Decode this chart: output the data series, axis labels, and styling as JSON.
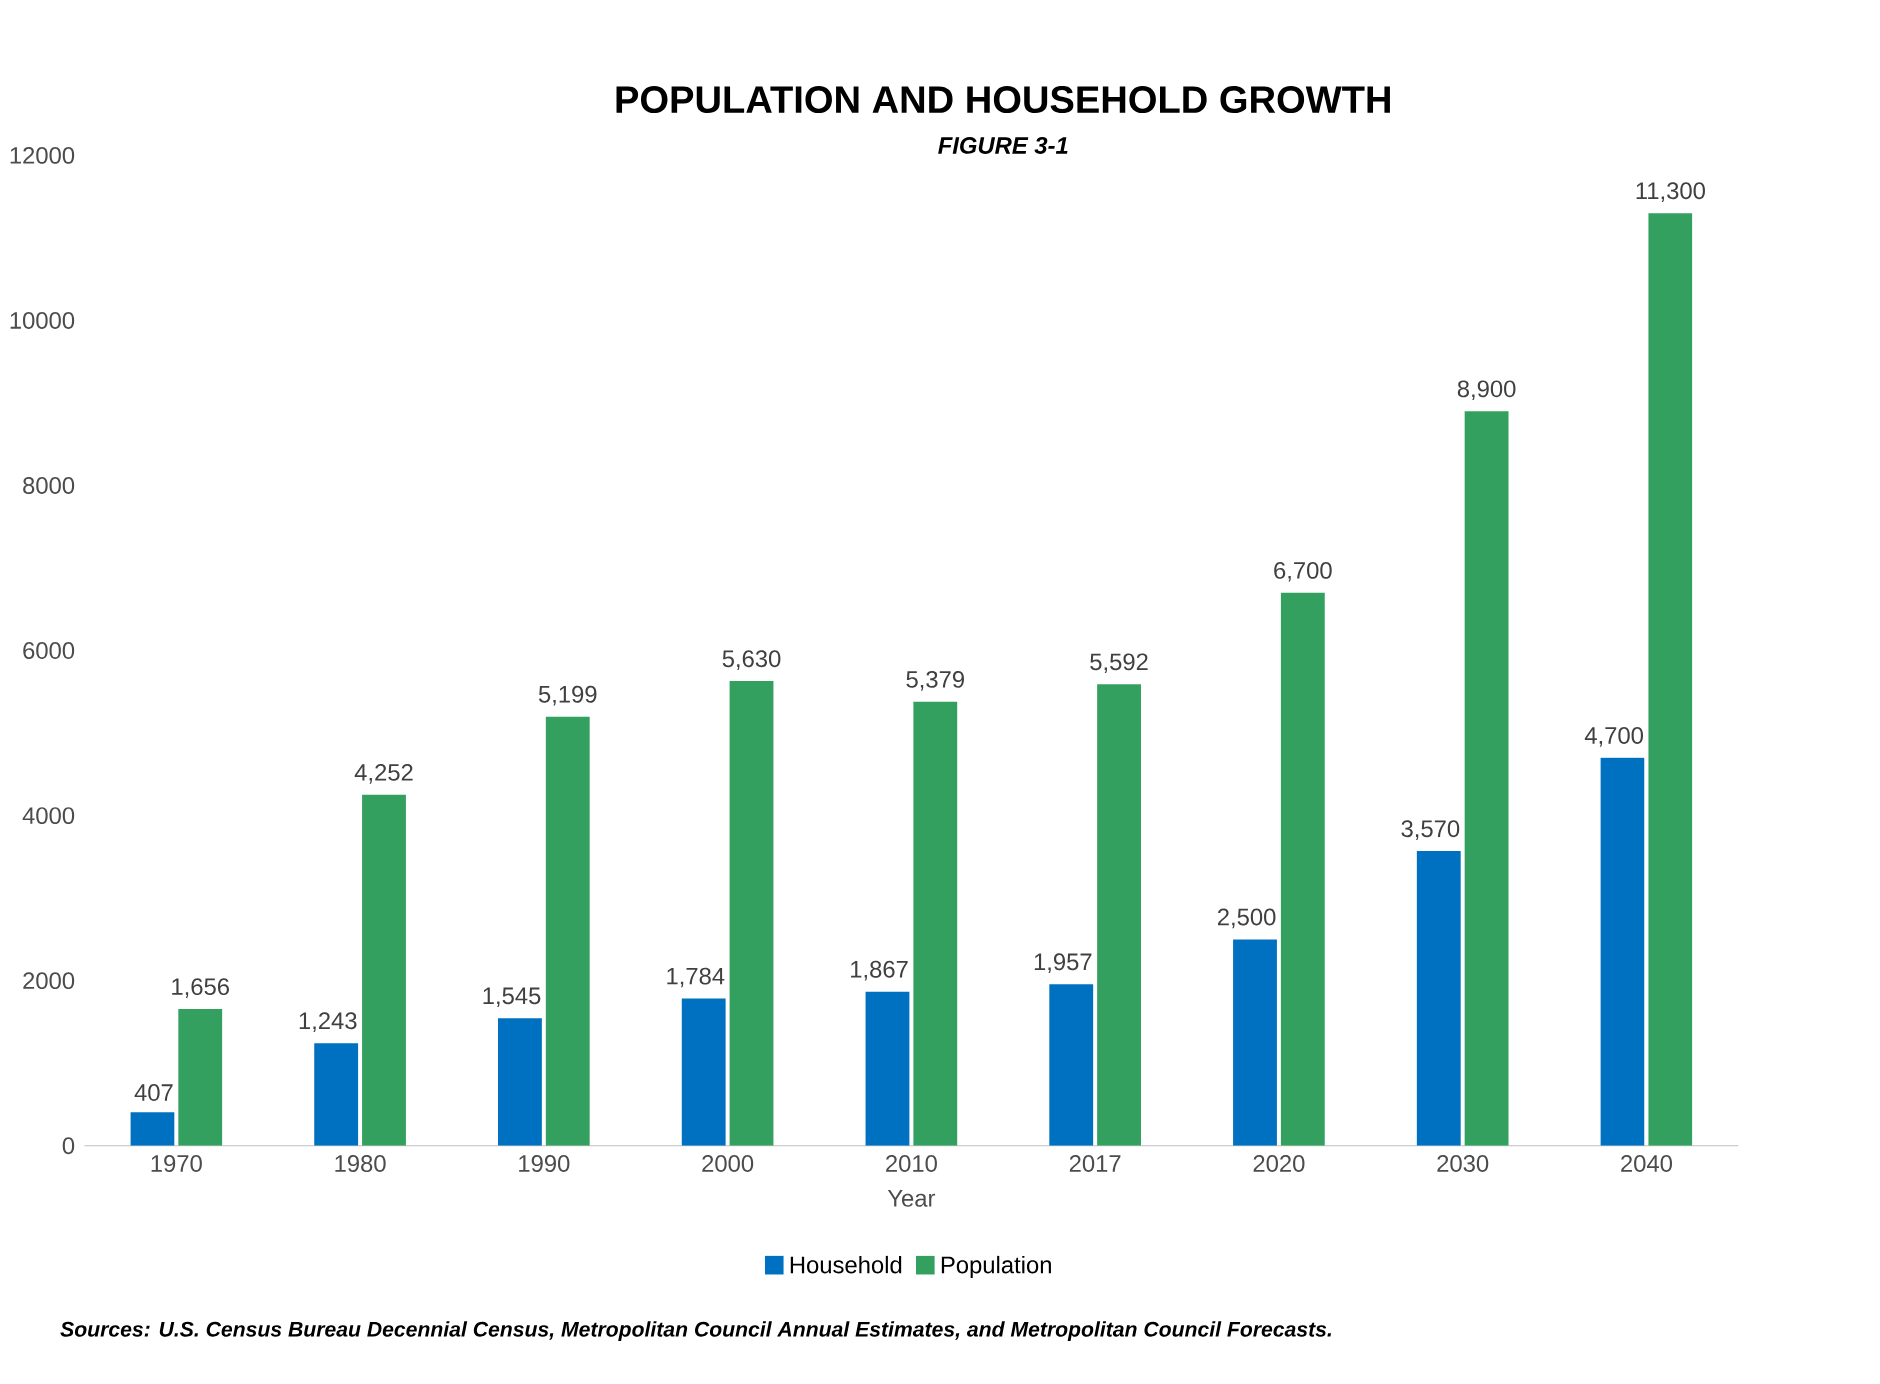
{
  "chart_data": {
    "type": "bar",
    "title": "POPULATION AND HOUSEHOLD GROWTH",
    "subtitle": "FIGURE 3-1",
    "xlabel": "Year",
    "categories": [
      "1970",
      "1980",
      "1990",
      "2000",
      "2010",
      "2017",
      "2020",
      "2030",
      "2040"
    ],
    "series": [
      {
        "name": "Household",
        "color": "#0070c0",
        "values": [
          407,
          1243,
          1545,
          1784,
          1867,
          1957,
          2500,
          3570,
          4700
        ],
        "value_labels": [
          "407",
          "1,243",
          "1,545",
          "1,784",
          "1,867",
          "1,957",
          "2,500",
          "3,570",
          "4,700"
        ]
      },
      {
        "name": "Population",
        "color": "#33a060",
        "values": [
          1656,
          4252,
          5199,
          5630,
          5379,
          5592,
          6700,
          8900,
          11300
        ],
        "value_labels": [
          "1,656",
          "4,252",
          "5,199",
          "5,630",
          "5,379",
          "5,592",
          "6,700",
          "8,900",
          "11,300"
        ]
      }
    ],
    "ylim": [
      0,
      12000
    ],
    "yticks": [
      0,
      2000,
      4000,
      6000,
      8000,
      10000,
      12000
    ],
    "grid": false,
    "legend": "bottom",
    "annotations": [
      "Sources: U.S. Census Bureau Decennial Census, Metropolitan Council Annual Estimates, and Metropolitan Council Forecasts."
    ]
  }
}
